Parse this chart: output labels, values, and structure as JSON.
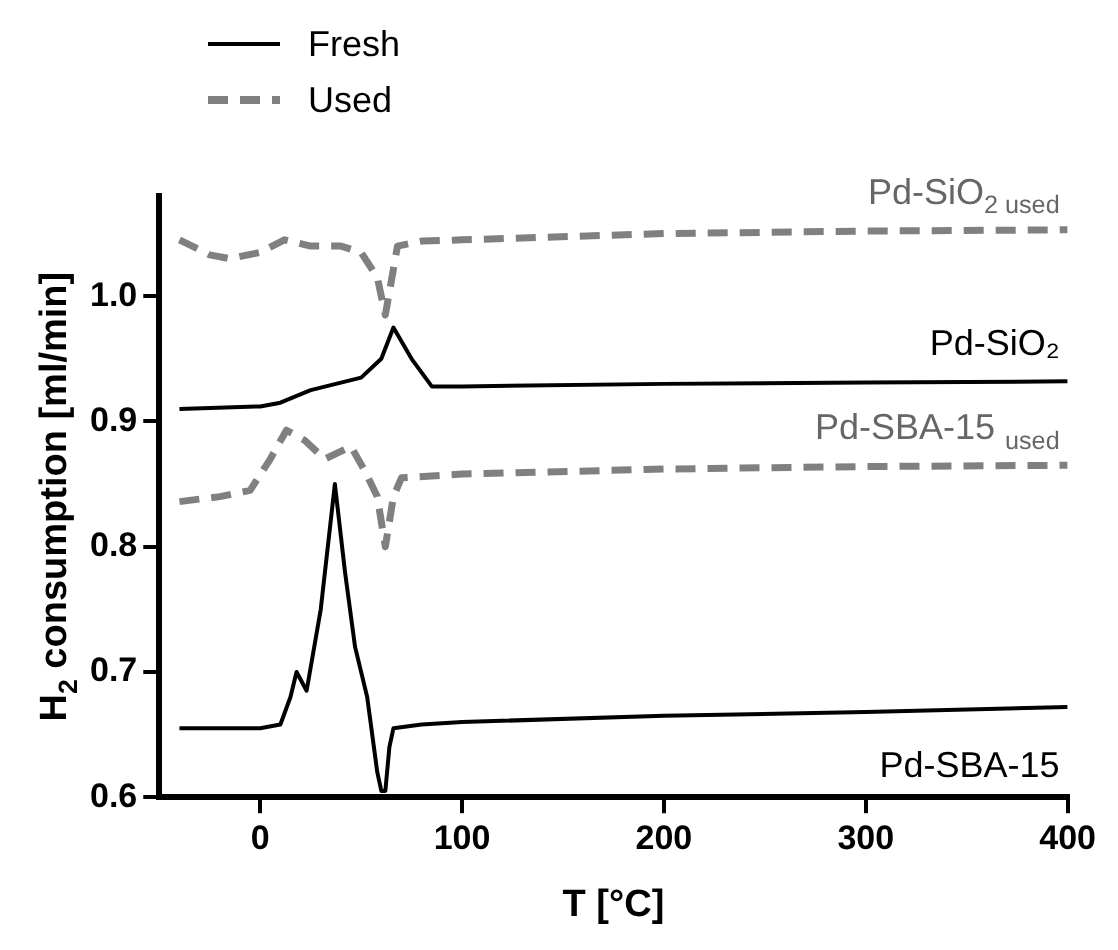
{
  "chart_data": {
    "type": "line",
    "xlabel": "T [°C]",
    "ylabel": "H$_{2}$ consumption [ml/min]",
    "xlim": [
      -50,
      400
    ],
    "xticks": [
      0,
      100,
      200,
      300,
      400
    ],
    "ylim": [
      0.6,
      1.08
    ],
    "yticks": [
      0.6,
      0.7,
      0.8,
      0.9,
      {
        "value": 1,
        "label": "1.0"
      }
    ],
    "grid": false,
    "marker": "none",
    "series": [
      {
        "name": "Pd-SiO₂",
        "color": "#000000",
        "line_style": "solid",
        "x": [
          -40,
          0,
          10,
          25,
          50,
          60,
          66,
          75,
          85,
          100,
          200,
          300,
          400
        ],
        "values": [
          0.91,
          0.912,
          0.915,
          0.925,
          0.935,
          0.95,
          0.975,
          0.95,
          0.928,
          0.928,
          0.93,
          0.931,
          0.932
        ]
      },
      {
        "name": "Pd-SiO$_{2 used}$",
        "color": "#808080",
        "line_style": "dashed",
        "x": [
          -40,
          -25,
          -15,
          0,
          12,
          25,
          40,
          50,
          58,
          62,
          68,
          80,
          100,
          200,
          300,
          400
        ],
        "values": [
          1.045,
          1.033,
          1.03,
          1.035,
          1.045,
          1.04,
          1.04,
          1.035,
          1.015,
          0.985,
          1.04,
          1.044,
          1.045,
          1.05,
          1.052,
          1.053
        ]
      },
      {
        "name": "Pd-SBA-15 $_{used}$",
        "color": "#808080",
        "line_style": "dashed",
        "x": [
          -40,
          -20,
          -5,
          5,
          13,
          22,
          32,
          45,
          52,
          58,
          62,
          66,
          70,
          100,
          200,
          300,
          400
        ],
        "values": [
          0.836,
          0.84,
          0.845,
          0.87,
          0.893,
          0.885,
          0.87,
          0.88,
          0.86,
          0.84,
          0.8,
          0.84,
          0.855,
          0.858,
          0.862,
          0.864,
          0.865
        ]
      },
      {
        "name": "Pd-SBA-15",
        "color": "#000000",
        "line_style": "solid",
        "x": [
          -40,
          0,
          10,
          15,
          18,
          23,
          30,
          37,
          42,
          47,
          53,
          58,
          60,
          62,
          64,
          66,
          80,
          100,
          200,
          300,
          400
        ],
        "values": [
          0.655,
          0.655,
          0.658,
          0.68,
          0.7,
          0.685,
          0.75,
          0.85,
          0.78,
          0.72,
          0.68,
          0.62,
          0.605,
          0.605,
          0.64,
          0.655,
          0.658,
          0.66,
          0.665,
          0.668,
          0.672
        ]
      }
    ],
    "annotations": [
      "Fresh",
      "Used"
    ]
  }
}
